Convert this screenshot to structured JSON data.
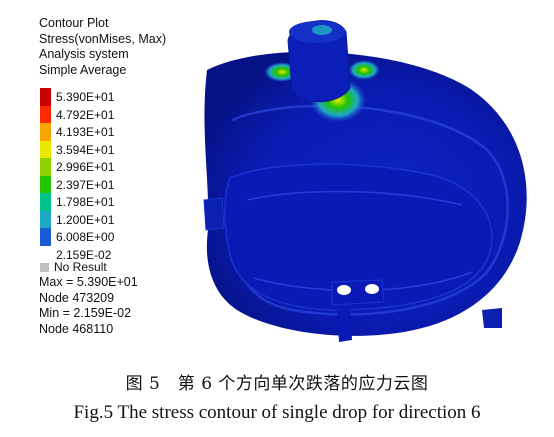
{
  "plot": {
    "header_lines": [
      "Contour Plot",
      "Stress(vonMises, Max)",
      "Analysis system",
      "Simple Average"
    ],
    "legend": {
      "labels": [
        "5.390E+01",
        "4.792E+01",
        "4.193E+01",
        "3.594E+01",
        "2.996E+01",
        "2.397E+01",
        "1.798E+01",
        "1.200E+01",
        "6.008E+00",
        "2.159E-02"
      ],
      "colors": [
        "#c80000",
        "#ff2a00",
        "#f7a500",
        "#e8e800",
        "#8ed400",
        "#22c400",
        "#00c28a",
        "#1fa8c6",
        "#1a5bd6",
        "#0a1aa8"
      ],
      "no_result_label": "No Result"
    },
    "stats": [
      "Max = 5.390E+01",
      "Node 473209",
      "Min = 2.159E-02",
      "Node 468110"
    ]
  },
  "caption": {
    "chinese": "图 5　第 6 个方向单次跌落的应力云图",
    "english": "Fig.5 The stress contour of single drop for direction 6"
  },
  "colors": {
    "model_blue": "#0b1fb0",
    "model_blue_dark": "#06127a",
    "model_blue_light": "#2a46e0"
  }
}
